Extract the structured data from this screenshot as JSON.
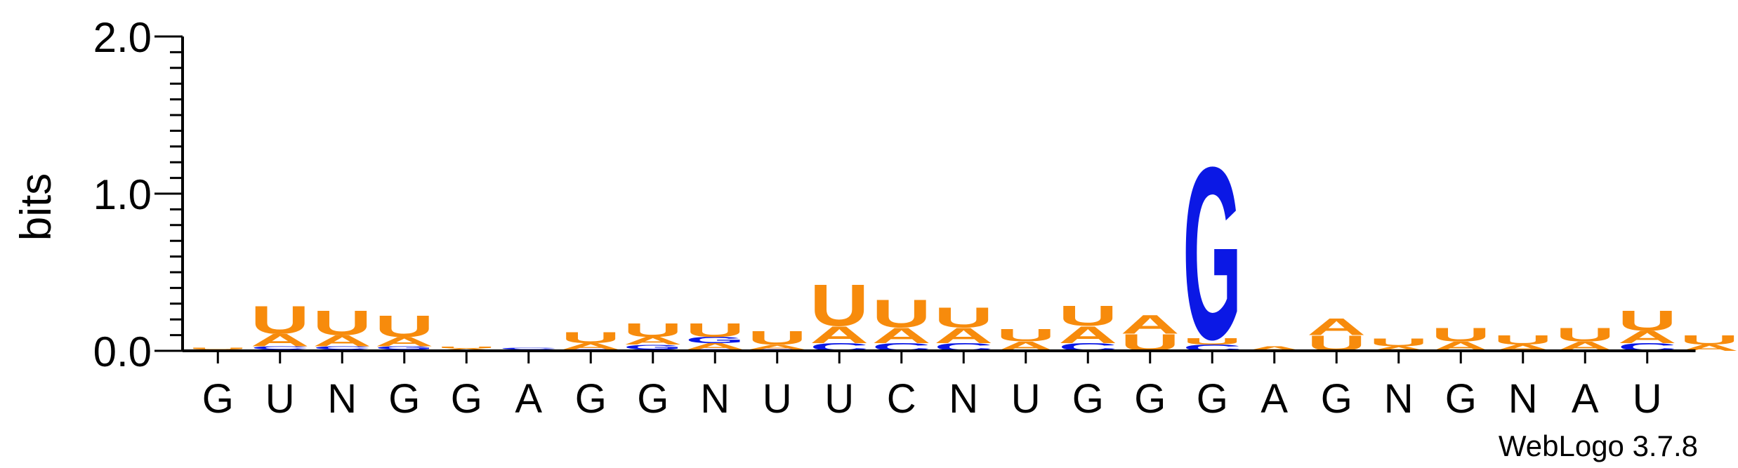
{
  "chart_data": {
    "type": "sequence-logo",
    "ylabel": "bits",
    "ylim": [
      0,
      2.0
    ],
    "yticks": [
      {
        "value": 0,
        "label": "0.0"
      },
      {
        "value": 1,
        "label": "1.0"
      },
      {
        "value": 2,
        "label": "2.0"
      }
    ],
    "colors": {
      "A": "#f78b0c",
      "U": "#f78b0c",
      "G": "#0b18e5",
      "C": "#0b18e5",
      "axis": "#000000"
    },
    "positions": [
      {
        "label": "G",
        "stack": [
          {
            "letter": "A",
            "bits": 0.01
          },
          {
            "letter": "U",
            "bits": 0.01
          }
        ]
      },
      {
        "label": "U",
        "stack": [
          {
            "letter": "G",
            "bits": 0.01
          },
          {
            "letter": "C",
            "bits": 0.02
          },
          {
            "letter": "A",
            "bits": 0.08
          },
          {
            "letter": "U",
            "bits": 0.18
          }
        ]
      },
      {
        "label": "N",
        "stack": [
          {
            "letter": "G",
            "bits": 0.01
          },
          {
            "letter": "C",
            "bits": 0.02
          },
          {
            "letter": "A",
            "bits": 0.07
          },
          {
            "letter": "U",
            "bits": 0.16
          }
        ]
      },
      {
        "label": "G",
        "stack": [
          {
            "letter": "C",
            "bits": 0.01
          },
          {
            "letter": "G",
            "bits": 0.02
          },
          {
            "letter": "A",
            "bits": 0.06
          },
          {
            "letter": "U",
            "bits": 0.14
          }
        ]
      },
      {
        "label": "G",
        "stack": [
          {
            "letter": "C",
            "bits": 0.005
          },
          {
            "letter": "A",
            "bits": 0.01
          },
          {
            "letter": "U",
            "bits": 0.01
          }
        ]
      },
      {
        "label": "A",
        "stack": [
          {
            "letter": "G",
            "bits": 0.01
          },
          {
            "letter": "C",
            "bits": 0.01
          }
        ]
      },
      {
        "label": "G",
        "stack": [
          {
            "letter": "C",
            "bits": 0.01
          },
          {
            "letter": "A",
            "bits": 0.04
          },
          {
            "letter": "U",
            "bits": 0.07
          }
        ]
      },
      {
        "label": "G",
        "stack": [
          {
            "letter": "C",
            "bits": 0.01
          },
          {
            "letter": "G",
            "bits": 0.03
          },
          {
            "letter": "A",
            "bits": 0.05
          },
          {
            "letter": "U",
            "bits": 0.09
          }
        ]
      },
      {
        "label": "N",
        "stack": [
          {
            "letter": "C",
            "bits": 0.01
          },
          {
            "letter": "A",
            "bits": 0.04
          },
          {
            "letter": "G",
            "bits": 0.04
          },
          {
            "letter": "U",
            "bits": 0.09
          }
        ]
      },
      {
        "label": "U",
        "stack": [
          {
            "letter": "C",
            "bits": 0.01
          },
          {
            "letter": "A",
            "bits": 0.03
          },
          {
            "letter": "U",
            "bits": 0.09
          }
        ]
      },
      {
        "label": "U",
        "stack": [
          {
            "letter": "C",
            "bits": 0.05
          },
          {
            "letter": "A",
            "bits": 0.11
          },
          {
            "letter": "U",
            "bits": 0.27
          }
        ]
      },
      {
        "label": "C",
        "stack": [
          {
            "letter": "C",
            "bits": 0.05
          },
          {
            "letter": "A",
            "bits": 0.1
          },
          {
            "letter": "U",
            "bits": 0.18
          }
        ]
      },
      {
        "label": "N",
        "stack": [
          {
            "letter": "C",
            "bits": 0.05
          },
          {
            "letter": "A",
            "bits": 0.1
          },
          {
            "letter": "U",
            "bits": 0.13
          }
        ]
      },
      {
        "label": "U",
        "stack": [
          {
            "letter": "A",
            "bits": 0.06
          },
          {
            "letter": "U",
            "bits": 0.08
          }
        ]
      },
      {
        "label": "G",
        "stack": [
          {
            "letter": "C",
            "bits": 0.05
          },
          {
            "letter": "A",
            "bits": 0.11
          },
          {
            "letter": "U",
            "bits": 0.13
          }
        ]
      },
      {
        "label": "G",
        "stack": [
          {
            "letter": "U",
            "bits": 0.11
          },
          {
            "letter": "A",
            "bits": 0.12
          }
        ]
      },
      {
        "label": "G",
        "stack": [
          {
            "letter": "C",
            "bits": 0.04
          },
          {
            "letter": "U",
            "bits": 0.04
          },
          {
            "letter": "G",
            "bits": 1.12
          }
        ]
      },
      {
        "label": "A",
        "stack": [
          {
            "letter": "A",
            "bits": 0.03
          }
        ]
      },
      {
        "label": "G",
        "stack": [
          {
            "letter": "U",
            "bits": 0.1
          },
          {
            "letter": "A",
            "bits": 0.11
          }
        ]
      },
      {
        "label": "N",
        "stack": [
          {
            "letter": "A",
            "bits": 0.03
          },
          {
            "letter": "U",
            "bits": 0.05
          }
        ]
      },
      {
        "label": "G",
        "stack": [
          {
            "letter": "A",
            "bits": 0.06
          },
          {
            "letter": "U",
            "bits": 0.09
          }
        ]
      },
      {
        "label": "N",
        "stack": [
          {
            "letter": "A",
            "bits": 0.04
          },
          {
            "letter": "U",
            "bits": 0.06
          }
        ]
      },
      {
        "label": "A",
        "stack": [
          {
            "letter": "A",
            "bits": 0.06
          },
          {
            "letter": "U",
            "bits": 0.09
          }
        ]
      },
      {
        "label": "U",
        "stack": [
          {
            "letter": "C",
            "bits": 0.05
          },
          {
            "letter": "A",
            "bits": 0.08
          },
          {
            "letter": "U",
            "bits": 0.13
          }
        ]
      },
      {
        "label": "",
        "stack": [
          {
            "letter": "A",
            "bits": 0.04
          },
          {
            "letter": "U",
            "bits": 0.06
          }
        ]
      }
    ]
  },
  "footer": {
    "credit": "WebLogo 3.7.8"
  }
}
